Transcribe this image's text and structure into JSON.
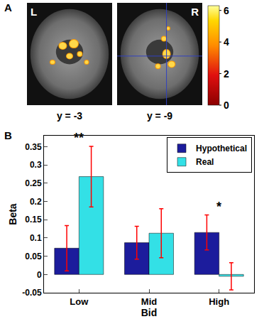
{
  "panel_a": {
    "label": "A",
    "slices": [
      {
        "side_label": "L",
        "caption": "y = -3"
      },
      {
        "side_label": "R",
        "caption": "y = -9"
      }
    ],
    "colorbar": {
      "range": [
        0,
        6.3
      ],
      "ticks": [
        0,
        2,
        4,
        6
      ]
    }
  },
  "chart_data": {
    "panel_label": "B",
    "type": "bar",
    "x_label": "Bid",
    "y_label": "Beta",
    "categories": [
      "Low",
      "Mid",
      "High"
    ],
    "series": [
      {
        "name": "Hypothetical",
        "color": "#1c1c9c",
        "values": [
          0.072,
          0.087,
          0.115
        ],
        "errors": [
          0.062,
          0.045,
          0.048
        ]
      },
      {
        "name": "Real",
        "color": "#33e0e6",
        "values": [
          0.268,
          0.113,
          -0.005
        ],
        "errors": [
          0.083,
          0.067,
          0.037
        ]
      }
    ],
    "ylim": [
      -0.05,
      0.38
    ],
    "yticks": [
      -0.05,
      0,
      0.05,
      0.1,
      0.15,
      0.2,
      0.25,
      0.3,
      0.35
    ],
    "grid": false,
    "legend": "top right",
    "annotations": [
      {
        "category": "Low",
        "text": "**"
      },
      {
        "category": "High",
        "text": "*"
      }
    ]
  }
}
